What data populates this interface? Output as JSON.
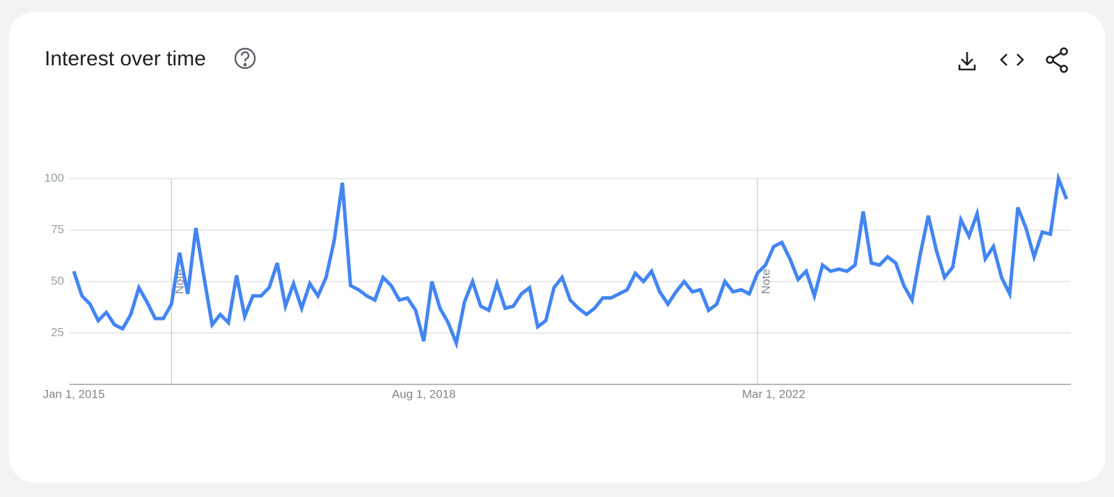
{
  "chart_data": {
    "type": "line",
    "title": "Interest over time",
    "categories": [
      "Jan 1, 2015",
      null,
      null,
      null,
      null,
      null,
      null,
      null,
      null,
      null,
      null,
      null,
      null,
      null,
      null,
      null,
      null,
      null,
      null,
      null,
      null,
      null,
      null,
      null,
      null,
      null,
      null,
      null,
      null,
      null,
      null,
      null,
      null,
      null,
      null,
      null,
      null,
      null,
      null,
      null,
      null,
      null,
      null,
      "Aug 1, 2018",
      null,
      null,
      null,
      null,
      null,
      null,
      null,
      null,
      null,
      null,
      null,
      null,
      null,
      null,
      null,
      null,
      null,
      null,
      null,
      null,
      null,
      null,
      null,
      null,
      null,
      null,
      null,
      null,
      null,
      null,
      null,
      null,
      null,
      null,
      null,
      null,
      null,
      null,
      null,
      null,
      null,
      null,
      "Mar 1, 2022",
      null,
      null,
      null,
      null,
      null,
      null,
      null,
      null,
      null,
      null,
      null,
      null,
      null,
      null,
      null,
      null,
      null,
      null,
      null,
      null,
      null,
      null,
      null,
      null,
      null,
      null,
      null,
      null,
      null,
      null,
      null,
      null,
      null,
      null,
      null,
      null
    ],
    "notes": [
      null,
      null,
      null,
      null,
      null,
      null,
      null,
      null,
      null,
      null,
      null,
      null,
      "Note",
      null,
      null,
      null,
      null,
      null,
      null,
      null,
      null,
      null,
      null,
      null,
      null,
      null,
      null,
      null,
      null,
      null,
      null,
      null,
      null,
      null,
      null,
      null,
      null,
      null,
      null,
      null,
      null,
      null,
      null,
      null,
      null,
      null,
      null,
      null,
      null,
      null,
      null,
      null,
      null,
      null,
      null,
      null,
      null,
      null,
      null,
      null,
      null,
      null,
      null,
      null,
      null,
      null,
      null,
      null,
      null,
      null,
      null,
      null,
      null,
      null,
      null,
      null,
      null,
      null,
      null,
      null,
      null,
      null,
      null,
      null,
      "Note",
      null,
      null,
      null,
      null,
      null,
      null,
      null,
      null,
      null,
      null,
      null,
      null,
      null,
      null,
      null,
      null,
      null,
      null,
      null,
      null,
      null,
      null,
      null,
      null,
      null,
      null,
      null,
      null,
      null,
      null,
      null,
      null,
      null,
      null,
      null,
      null,
      null,
      null
    ],
    "series": [
      {
        "color": "#4285f4",
        "values": [
          55,
          43,
          39,
          31,
          35,
          29,
          27,
          34,
          47,
          40,
          32,
          32,
          39,
          64,
          44,
          76,
          52,
          29,
          34,
          30,
          53,
          33,
          43,
          43,
          47,
          59,
          38,
          49,
          37,
          49,
          43,
          52,
          70,
          98,
          48,
          46,
          43,
          41,
          52,
          48,
          41,
          42,
          36,
          21,
          50,
          37,
          30,
          20,
          40,
          50,
          38,
          36,
          49,
          37,
          38,
          44,
          47,
          28,
          31,
          47,
          52,
          41,
          37,
          34,
          37,
          42,
          42,
          44,
          46,
          54,
          50,
          55,
          45,
          39,
          45,
          50,
          45,
          46,
          36,
          39,
          50,
          45,
          46,
          44,
          54,
          58,
          67,
          69,
          61,
          51,
          55,
          43,
          58,
          55,
          56,
          55,
          58,
          84,
          59,
          58,
          62,
          59,
          48,
          41,
          63,
          82,
          65,
          52,
          57,
          80,
          72,
          83,
          61,
          67,
          52,
          44,
          86,
          76,
          62,
          74,
          73,
          100,
          90
        ]
      }
    ],
    "ylim": [
      0,
      100
    ],
    "yticks": [
      25,
      50,
      75,
      100
    ],
    "grid": true
  }
}
